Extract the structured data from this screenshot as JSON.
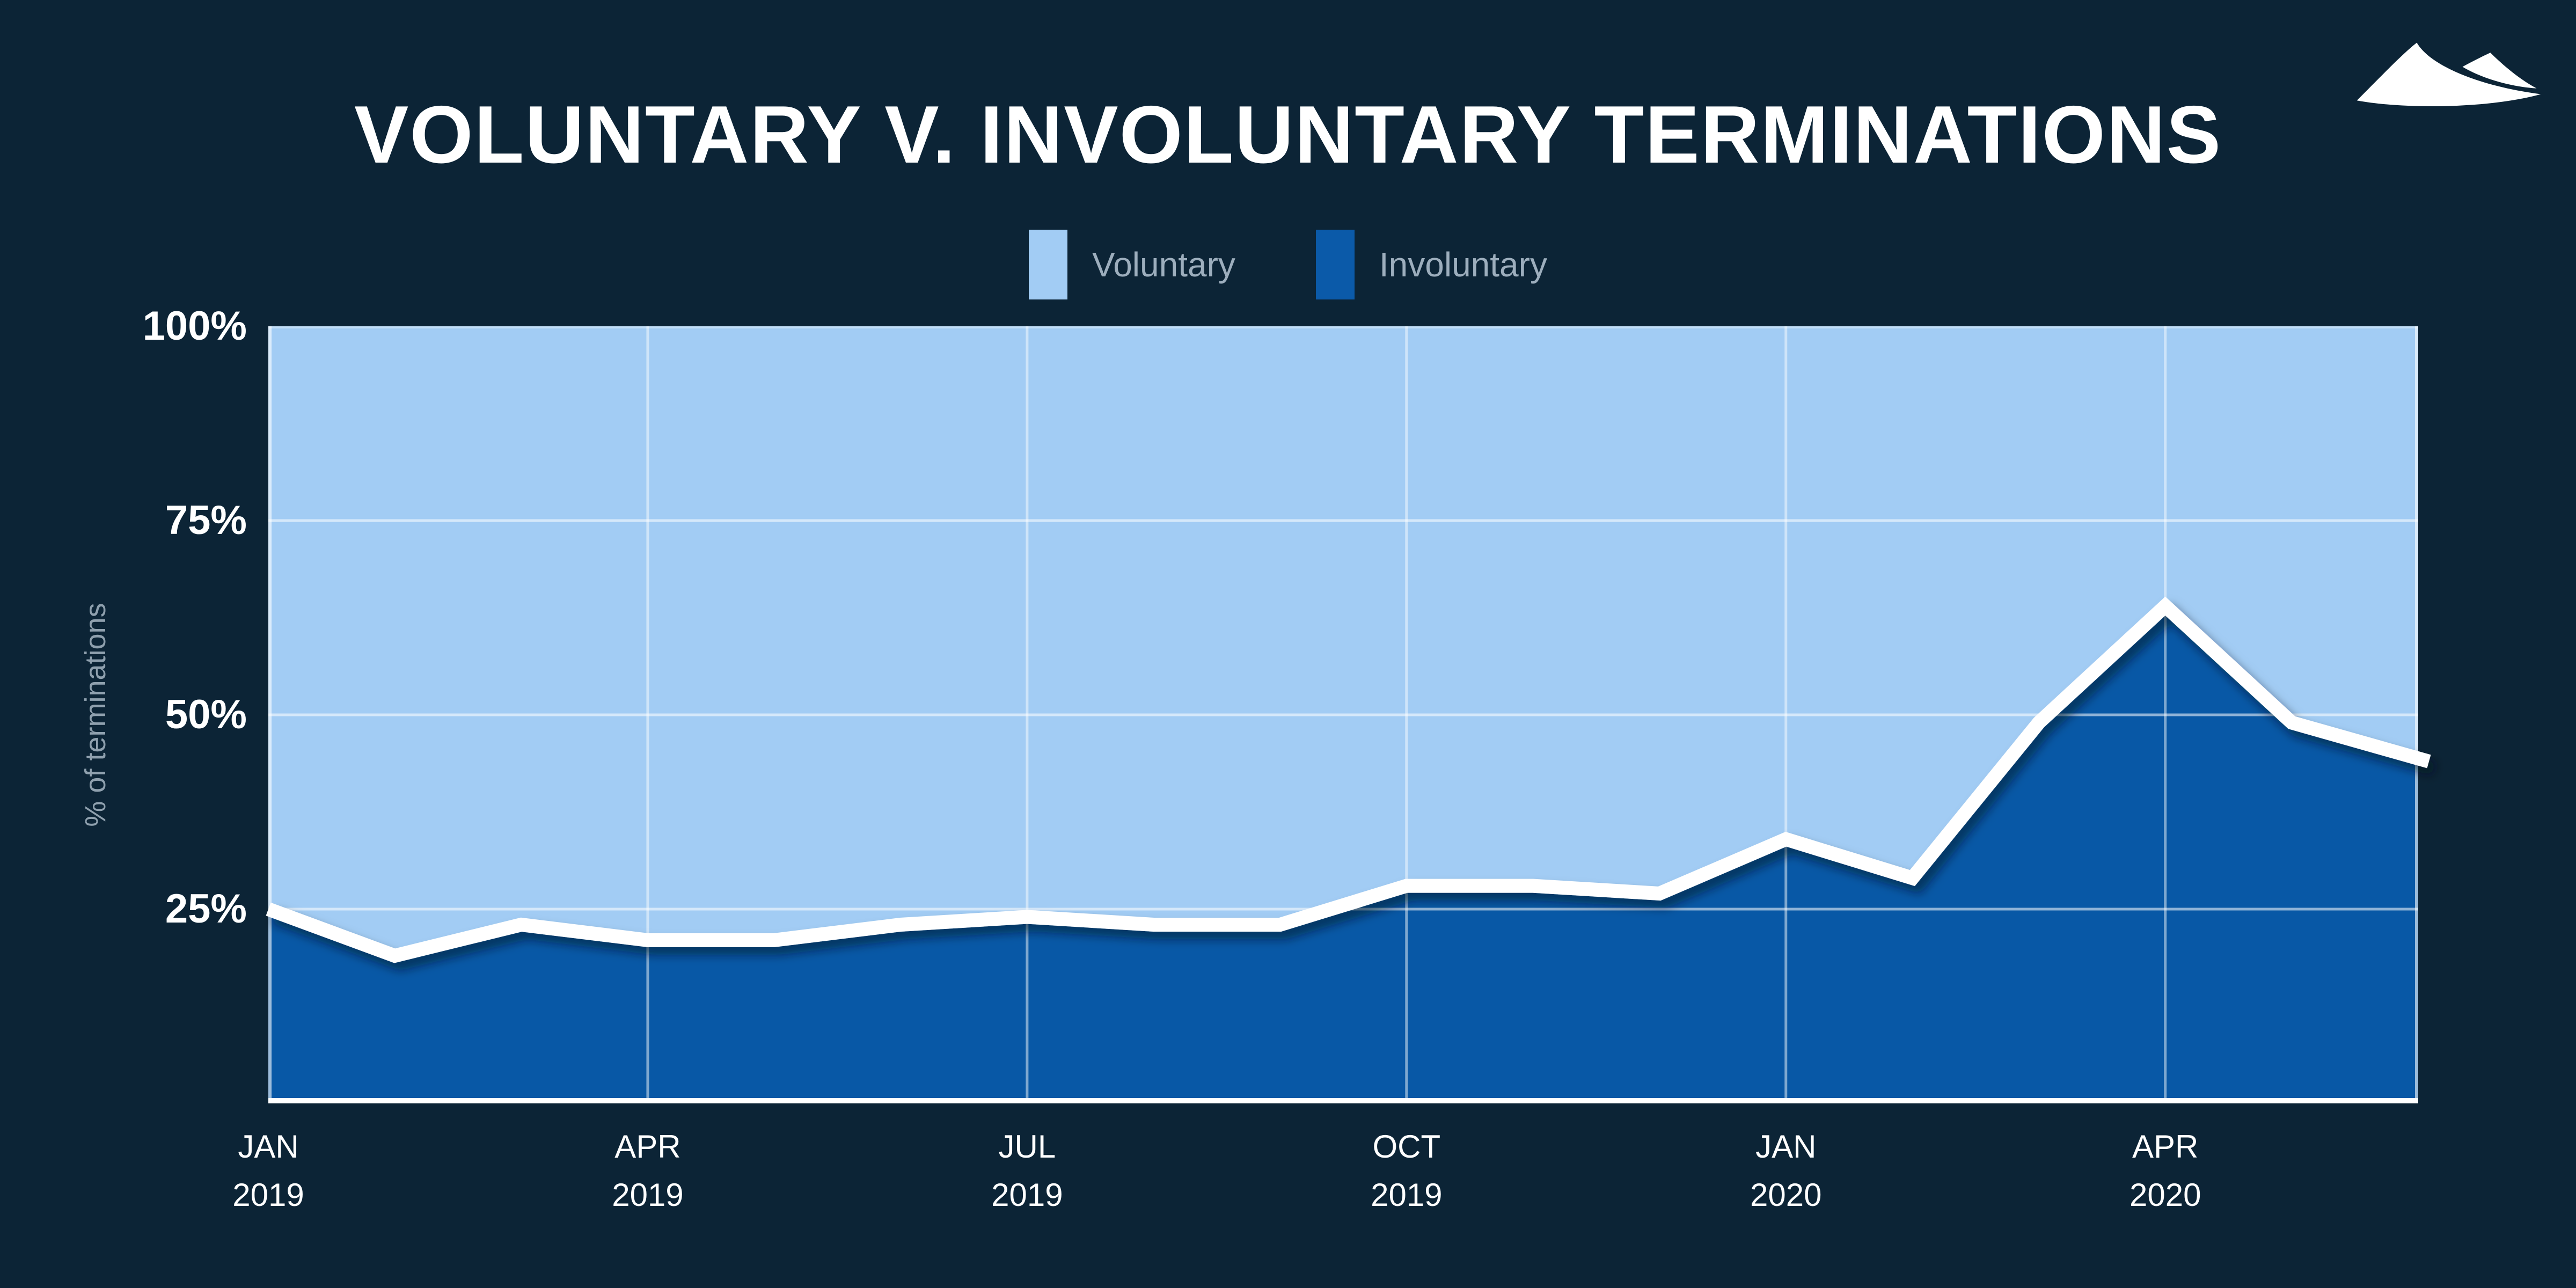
{
  "title": "VOLUNTARY V. INVOLUNTARY TERMINATIONS",
  "legend": {
    "items": [
      {
        "label": "Voluntary",
        "color": "#A2CCF4"
      },
      {
        "label": "Involuntary",
        "color": "#0B5AA9"
      }
    ]
  },
  "y_axis": {
    "title": "% of terminations",
    "ticks": [
      {
        "label": "100%",
        "value": 100
      },
      {
        "label": "75%",
        "value": 75
      },
      {
        "label": "50%",
        "value": 50
      },
      {
        "label": "25%",
        "value": 25
      }
    ]
  },
  "x_axis": {
    "ticks": [
      {
        "month": "JAN",
        "year": "2019",
        "index": 0
      },
      {
        "month": "APR",
        "year": "2019",
        "index": 3
      },
      {
        "month": "JUL",
        "year": "2019",
        "index": 6
      },
      {
        "month": "OCT",
        "year": "2019",
        "index": 9
      },
      {
        "month": "JAN",
        "year": "2020",
        "index": 12
      },
      {
        "month": "APR",
        "year": "2020",
        "index": 15
      }
    ]
  },
  "chart_data": {
    "type": "area",
    "subtype": "100-percent-stacked",
    "title": "Voluntary v. Involuntary Terminations",
    "x": [
      "Jan 2019",
      "Feb 2019",
      "Mar 2019",
      "Apr 2019",
      "May 2019",
      "Jun 2019",
      "Jul 2019",
      "Aug 2019",
      "Sep 2019",
      "Oct 2019",
      "Nov 2019",
      "Dec 2019",
      "Jan 2020",
      "Feb 2020",
      "Mar 2020",
      "Apr 2020",
      "May 2020",
      "Jun 2020"
    ],
    "series": [
      {
        "name": "Involuntary",
        "color": "#0858A6",
        "values": [
          25,
          19,
          23,
          21,
          21,
          23,
          24,
          23,
          23,
          28,
          28,
          27,
          34,
          29,
          49,
          64,
          49,
          44
        ]
      },
      {
        "name": "Voluntary",
        "color": "#A2CCF4",
        "values": [
          75,
          81,
          77,
          79,
          79,
          77,
          76,
          77,
          77,
          72,
          72,
          73,
          66,
          71,
          51,
          36,
          51,
          56
        ]
      }
    ],
    "ylabel": "% of terminations",
    "ylim": [
      0,
      100
    ],
    "grid": {
      "horizontal_pct": [
        75,
        50,
        25
      ],
      "vertical_x_indices": [
        3,
        6,
        9,
        12,
        15
      ]
    },
    "legend_position": "top",
    "boundary_line": {
      "color": "#FFFFFF",
      "on_series": "Involuntary"
    }
  },
  "colors": {
    "background": "#0C2436",
    "grid_line": "rgba(255,255,255,0.55)",
    "vertical_grid_line": "rgba(255,255,255,0.48)",
    "plot_border": "rgba(255,255,255,0.6)",
    "bottom_border": "#FFFFFF",
    "axis_tick_text": "#FFFFFF",
    "muted_text": "#8FA0AE",
    "legend_text": "#9DAEBD"
  }
}
